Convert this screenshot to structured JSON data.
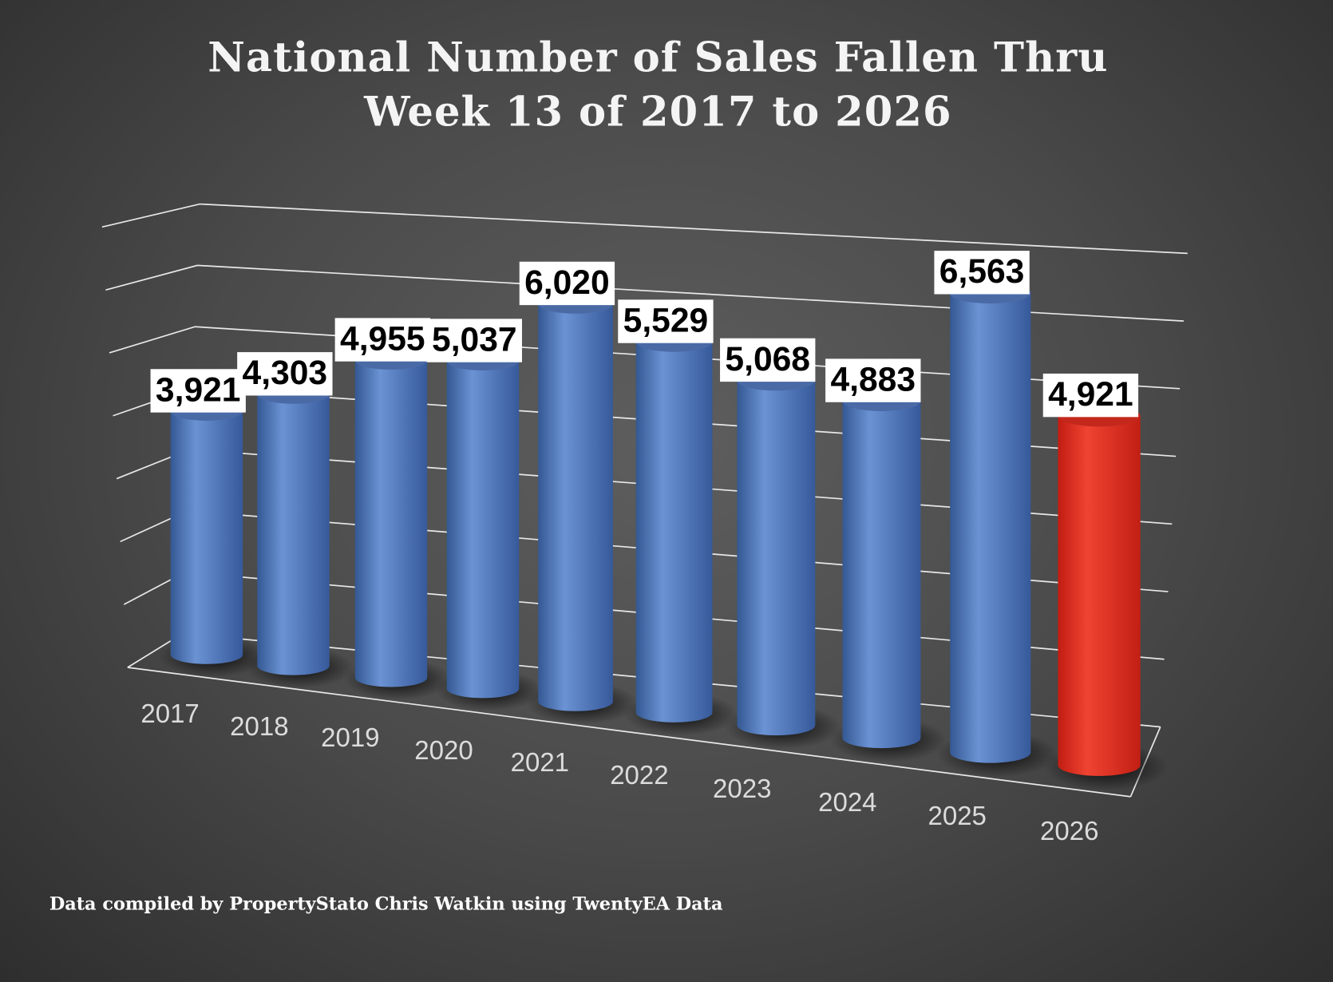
{
  "chart_data": {
    "type": "bar",
    "style": "3d-cylinder",
    "title": [
      "National Number of Sales Fallen Thru",
      "Week 13 of 2017 to 2026"
    ],
    "categories": [
      "2017",
      "2018",
      "2019",
      "2020",
      "2021",
      "2022",
      "2023",
      "2024",
      "2025",
      "2026"
    ],
    "values": [
      3921,
      4303,
      4955,
      5037,
      6020,
      5529,
      5068,
      4883,
      6563,
      4921
    ],
    "data_labels": [
      "3,921",
      "4,303",
      "4,955",
      "5,037",
      "6,020",
      "5,529",
      "5,068",
      "4,883",
      "6,563",
      "4,921"
    ],
    "highlight_category": "2026",
    "ylim": [
      0,
      7000
    ],
    "grid": true,
    "colors": {
      "bar": "#4f79bf",
      "highlight": "#e0301f"
    },
    "xlabel": "",
    "ylabel": ""
  },
  "footer": "Data compiled by PropertyStato Chris Watkin using TwentyEA Data"
}
